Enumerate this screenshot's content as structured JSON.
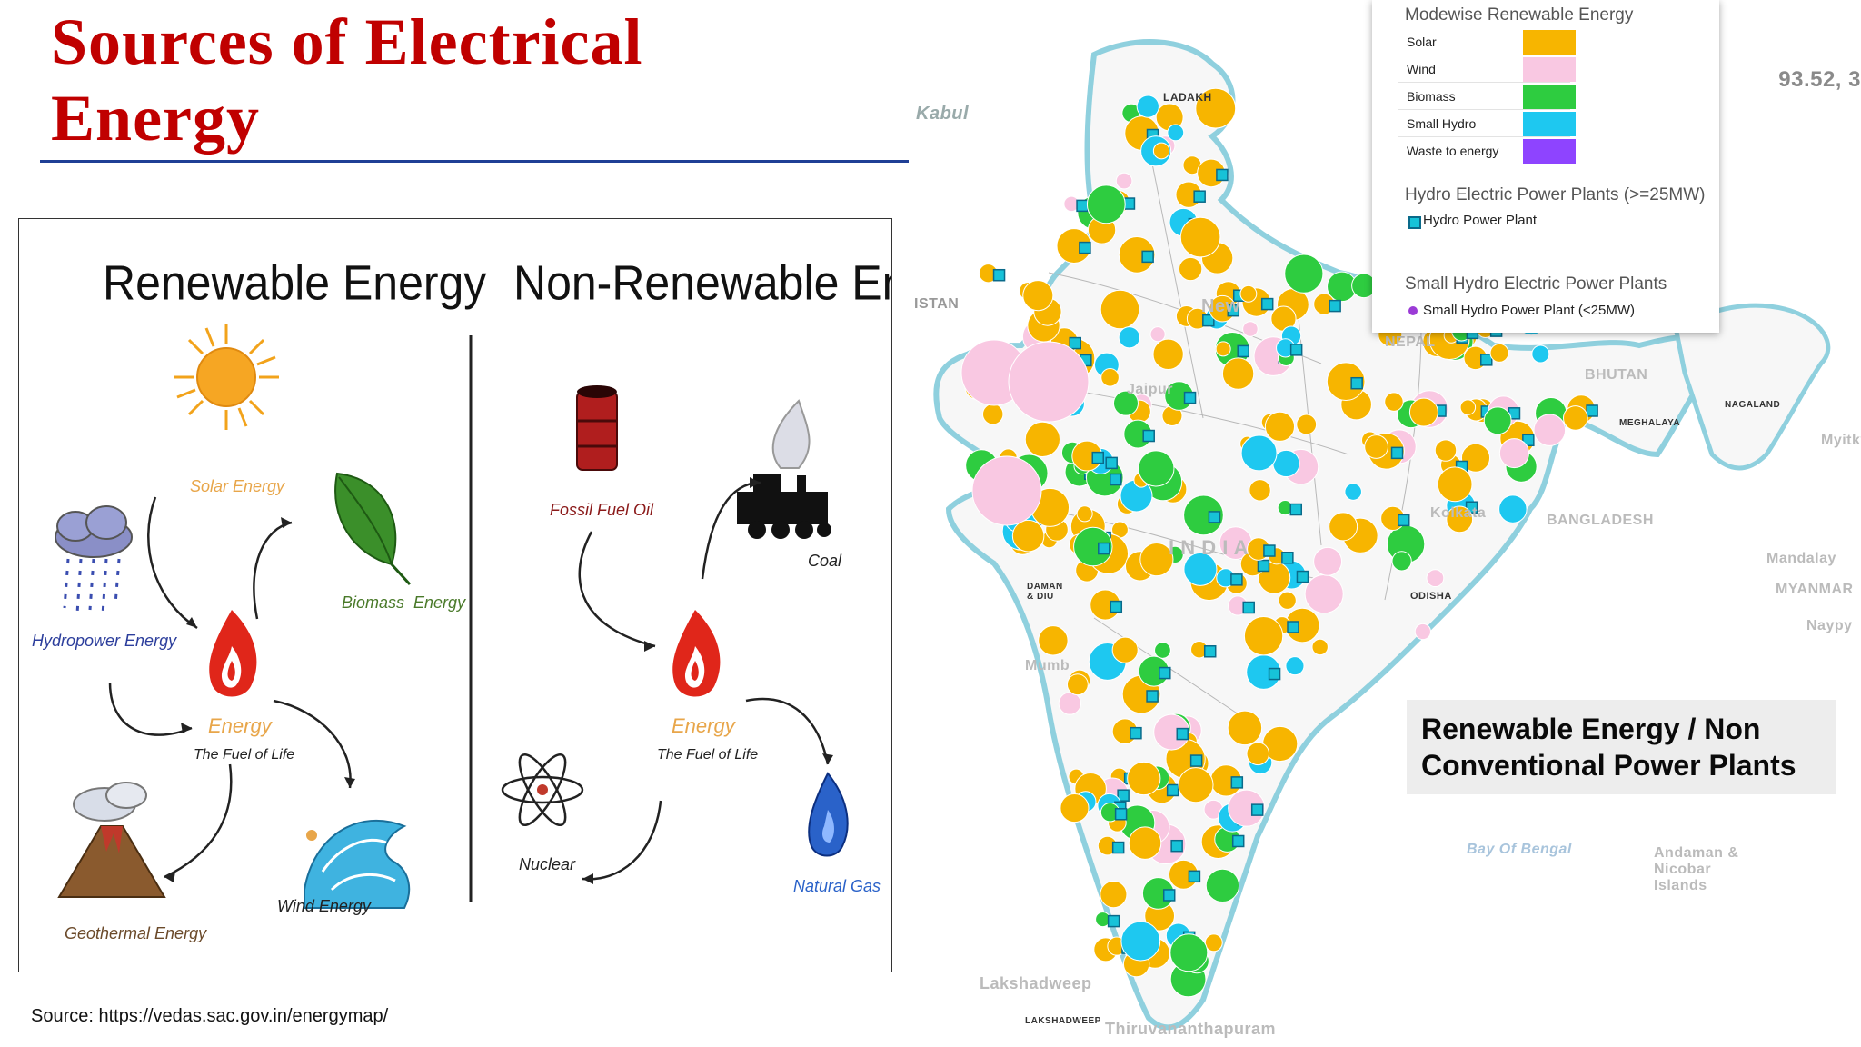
{
  "slide": {
    "title_line1": "Sources of Electrical",
    "title_line2": "Energy",
    "source_text": "Source: https://vedas.sac.gov.in/energymap/"
  },
  "diagram": {
    "renewable_heading": "Renewable Energy",
    "nonrenewable_heading": "Non-Renewable Energy",
    "renewable_items": {
      "solar": "Solar Energy",
      "biomass_a": "Biomass",
      "biomass_b": "Energy",
      "hydropower": "Hydropower Energy",
      "wind": "Wind Energy",
      "geothermal": "Geothermal Energy"
    },
    "nonrenewable_items": {
      "fossil": "Fossil Fuel Oil",
      "coal": "Coal",
      "nuclear": "Nuclear",
      "gas": "Natural Gas"
    },
    "center_label": "Energy",
    "center_sub": "The Fuel of Life"
  },
  "map": {
    "coordinate_readout": "93.52, 3",
    "callout_line1": "Renewable Energy / Non",
    "callout_line2": "Conventional Power Plants",
    "legend": {
      "modewise_title": "Modewise Renewable Energy",
      "modes": [
        {
          "name": "Solar",
          "color": "#f7b500"
        },
        {
          "name": "Wind",
          "color": "#f9c8e2"
        },
        {
          "name": "Biomass",
          "color": "#2ecc40"
        },
        {
          "name": "Small Hydro",
          "color": "#1ec8f0"
        },
        {
          "name": "Waste to energy",
          "color": "#8e44ff"
        }
      ],
      "hydro_title": "Hydro Electric Power Plants (>=25MW)",
      "hydro_item": "Hydro Power Plant",
      "small_hydro_title": "Small Hydro Electric Power Plants",
      "small_hydro_item": "Small Hydro Power Plant (<25MW)"
    },
    "place_labels": {
      "kabul": "Kabul",
      "istan": "ISTAN",
      "ladakh": "LADAKH",
      "nepal": "NEPAL",
      "bhutan": "BHUTAN",
      "bangladesh": "BANGLADESH",
      "india": "I N D I A",
      "myanmar": "MYANMAR",
      "mandalay": "Mandalay",
      "naypy": "Naypy",
      "myitky": "Myitky",
      "odisha": "ODISHA",
      "mumbai": "Mumb",
      "bay": "Bay Of Bengal",
      "andaman": "Andaman & Nicobar Islands",
      "lakshadweep": "Lakshadweep",
      "lakshadweep_caps": "LAKSHADWEEP",
      "thiruvananthapuram": "Thiruvananthapuram",
      "new_delhi": "New",
      "meghalaya": "MEGHALAYA",
      "nagaland": "NAGALAND",
      "kolkata": "Kolkata",
      "jaipur": "Jaipur",
      "daman": "DAMAN & DIU"
    }
  }
}
